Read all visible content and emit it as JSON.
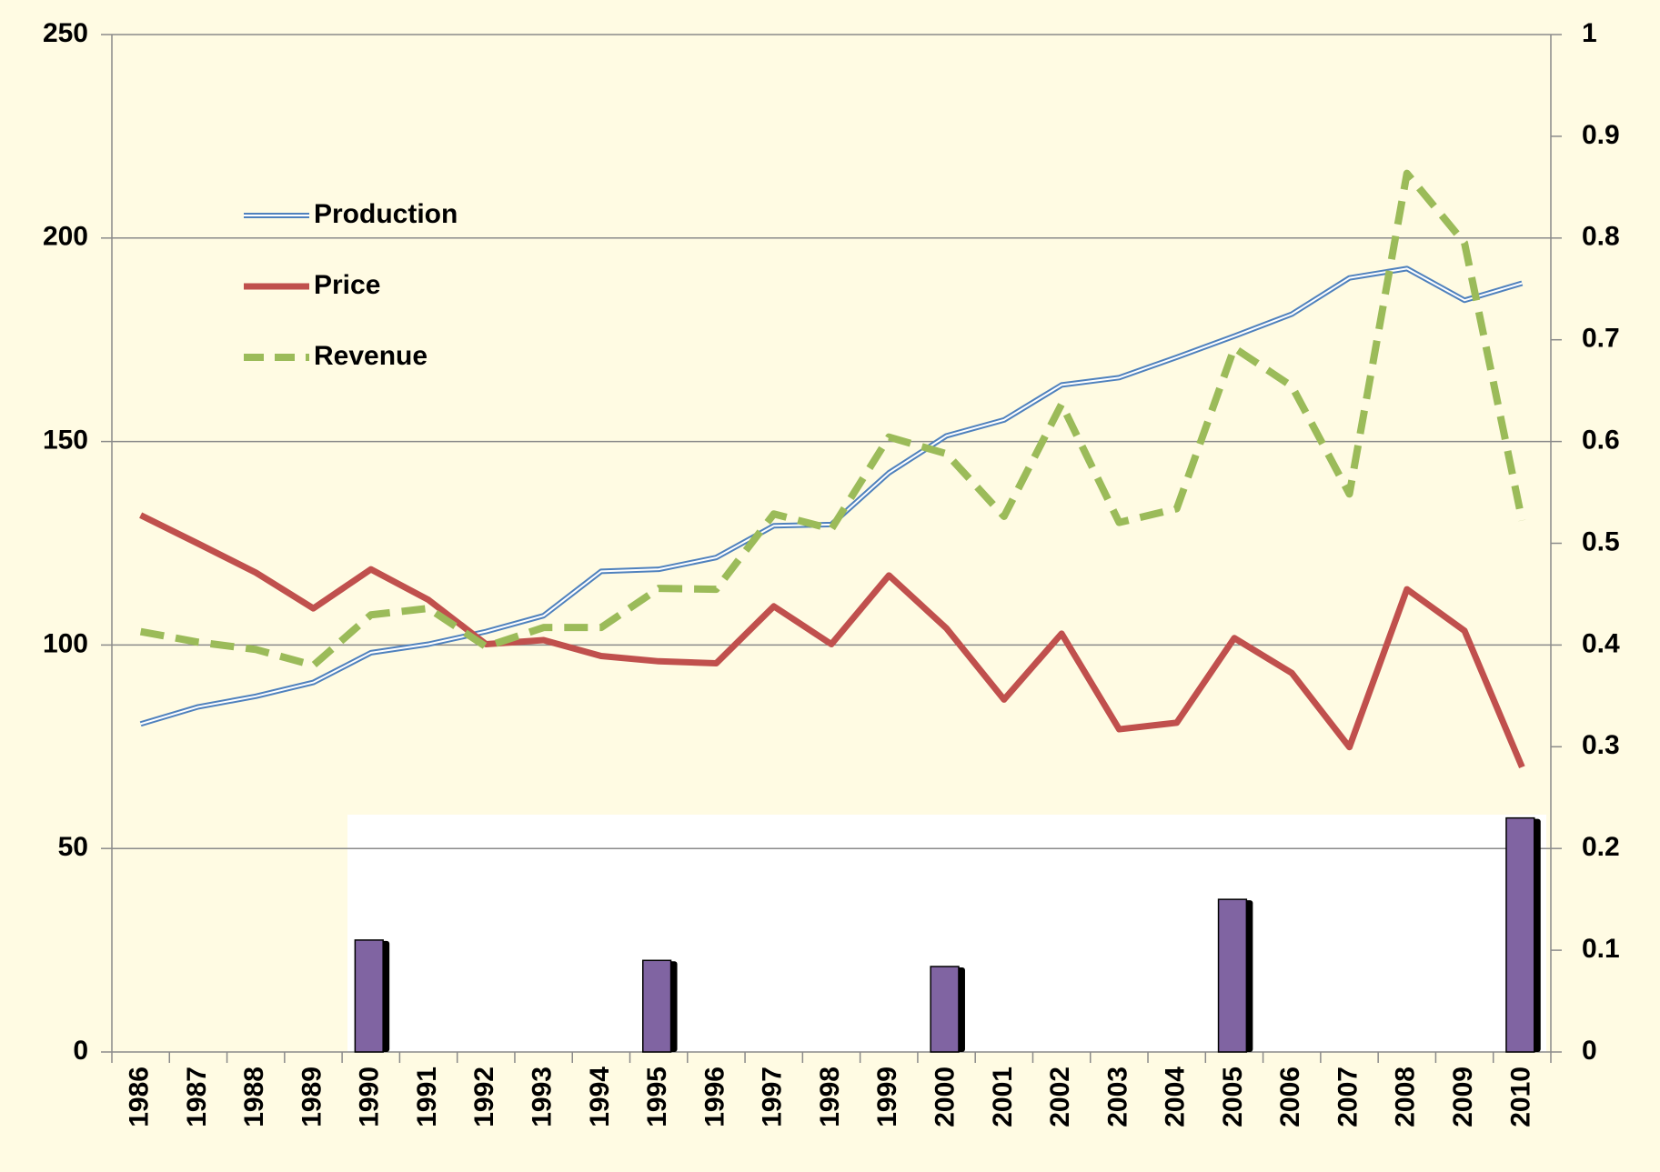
{
  "chart_data": {
    "type": "line",
    "categories": [
      "1986",
      "1987",
      "1988",
      "1989",
      "1990",
      "1991",
      "1992",
      "1993",
      "1994",
      "1995",
      "1996",
      "1997",
      "1998",
      "1999",
      "2000",
      "2001",
      "2002",
      "2003",
      "2004",
      "2005",
      "2006",
      "2007",
      "2008",
      "2009",
      "2010"
    ],
    "series": [
      {
        "name": "Production",
        "color": "#4f81bd",
        "style": "double",
        "values": [
          80.6,
          84.8,
          87.4,
          90.8,
          98.1,
          100.2,
          103.3,
          107.2,
          118.1,
          118.6,
          121.5,
          129.3,
          129.6,
          142.3,
          151.4,
          155.3,
          163.9,
          165.7,
          170.7,
          175.9,
          181.3,
          190.2,
          192.5,
          184.7,
          188.9
        ]
      },
      {
        "name": "Price",
        "color": "#c0504d",
        "style": "solid",
        "values": [
          131.9,
          124.9,
          117.8,
          109.0,
          118.6,
          111.1,
          100.2,
          101.2,
          97.3,
          96.0,
          95.5,
          109.5,
          100.2,
          117.1,
          104.1,
          86.6,
          102.8,
          79.3,
          80.9,
          101.7,
          93.1,
          74.9,
          113.7,
          103.5,
          70.0
        ]
      },
      {
        "name": "Revenue",
        "color": "#9bbb59",
        "style": "dashed",
        "values": [
          103.3,
          100.7,
          98.9,
          95.0,
          107.4,
          109.0,
          99.6,
          104.3,
          104.3,
          113.9,
          113.7,
          132.2,
          128.5,
          151.1,
          147.0,
          131.6,
          159.2,
          130.1,
          133.5,
          173.0,
          163.6,
          137.1,
          215.9,
          198.8,
          130.6
        ]
      },
      {
        "type": "bar",
        "axis": "y2",
        "color": "#8064a2",
        "values": [
          null,
          null,
          null,
          null,
          0.11,
          null,
          null,
          null,
          null,
          0.09,
          null,
          null,
          null,
          null,
          0.084,
          null,
          null,
          null,
          null,
          0.15,
          null,
          null,
          null,
          null,
          0.23
        ]
      }
    ],
    "ylim": [
      0,
      250
    ],
    "yticks": [
      0,
      50,
      100,
      150,
      200,
      250
    ],
    "y2lim": [
      0,
      1
    ],
    "y2ticks": [
      0,
      0.1,
      0.2,
      0.3,
      0.4,
      0.5,
      0.6,
      0.7,
      0.8,
      0.9,
      1
    ],
    "grid": true,
    "legend": "upper left"
  }
}
